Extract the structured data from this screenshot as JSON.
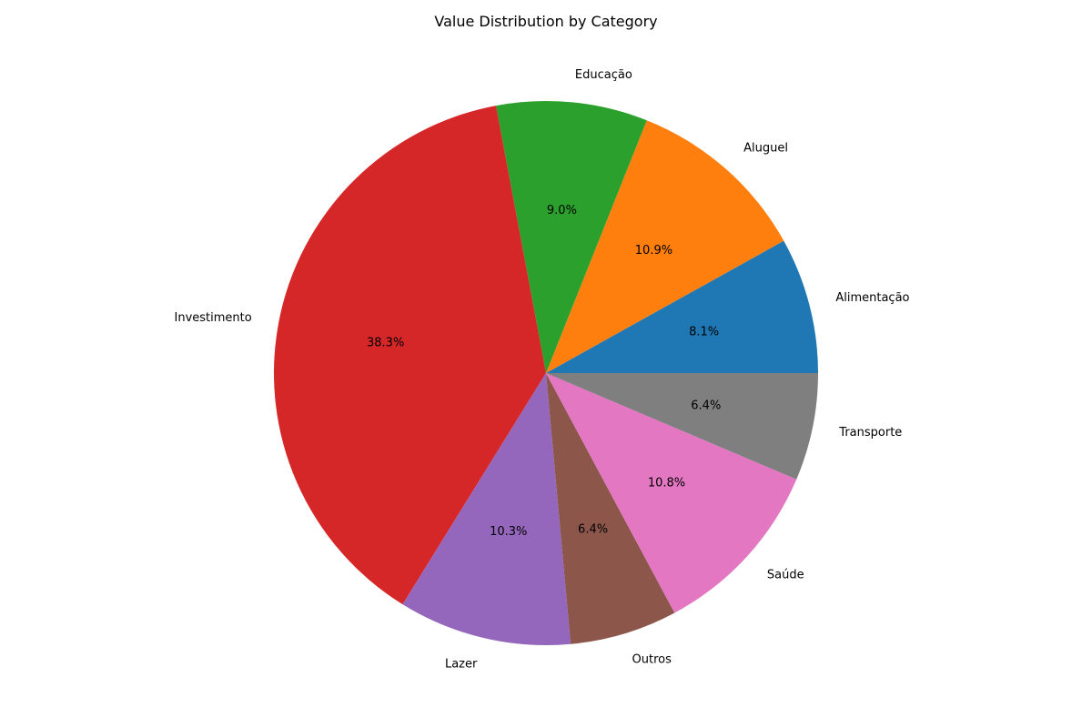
{
  "chart_data": {
    "type": "pie",
    "title": "Value Distribution by Category",
    "start_angle_deg": 0,
    "direction": "counterclockwise",
    "slices": [
      {
        "label": "Alimentação",
        "value": 8.1,
        "pct_label": "8.1%",
        "color": "#1f77b4"
      },
      {
        "label": "Aluguel",
        "value": 10.9,
        "pct_label": "10.9%",
        "color": "#ff7f0e"
      },
      {
        "label": "Educação",
        "value": 9.0,
        "pct_label": "9.0%",
        "color": "#2ca02c"
      },
      {
        "label": "Investimento",
        "value": 38.3,
        "pct_label": "38.3%",
        "color": "#d62728"
      },
      {
        "label": "Lazer",
        "value": 10.3,
        "pct_label": "10.3%",
        "color": "#9467bd"
      },
      {
        "label": "Outros",
        "value": 6.4,
        "pct_label": "6.4%",
        "color": "#8c564b"
      },
      {
        "label": "Saúde",
        "value": 10.8,
        "pct_label": "10.8%",
        "color": "#e377c2"
      },
      {
        "label": "Transporte",
        "value": 6.4,
        "pct_label": "6.4%",
        "color": "#7f7f7f"
      }
    ]
  }
}
